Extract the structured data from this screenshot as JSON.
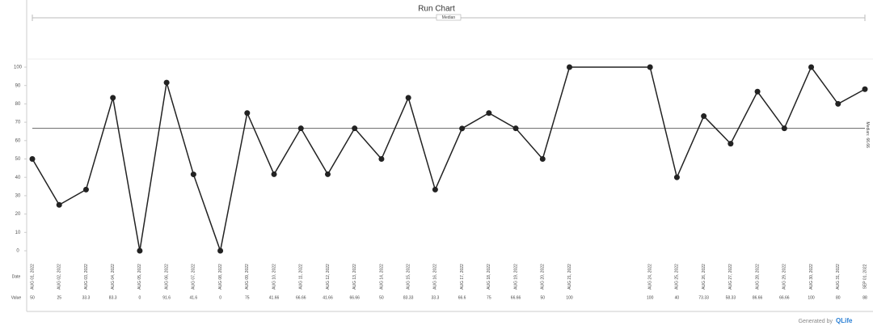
{
  "chart_data": {
    "type": "line",
    "title": "Run Chart",
    "legend_label": "Median",
    "x": [
      1,
      2,
      3,
      4,
      5,
      6,
      7,
      8,
      9,
      10,
      11,
      12,
      13,
      14,
      15,
      16,
      17,
      18,
      19,
      20,
      21,
      24,
      25,
      26,
      27,
      28,
      29,
      30,
      31,
      32
    ],
    "xlim": [
      1,
      32
    ],
    "categories": [
      "AUG 01, 2022",
      "AUG 02, 2022",
      "AUG 03, 2022",
      "AUG 04, 2022",
      "AUG 05, 2022",
      "AUG 06, 2022",
      "AUG 07, 2022",
      "AUG 08, 2022",
      "AUG 09, 2022",
      "AUG 10, 2022",
      "AUG 11, 2022",
      "AUG 12, 2022",
      "AUG 13, 2022",
      "AUG 14, 2022",
      "AUG 15, 2022",
      "AUG 16, 2022",
      "AUG 17, 2022",
      "AUG 18, 2022",
      "AUG 19, 2022",
      "AUG 20, 2022",
      "AUG 21, 2022",
      "AUG 24, 2022",
      "AUG 25, 2022",
      "AUG 26, 2022",
      "AUG 27, 2022",
      "AUG 28, 2022",
      "AUG 29, 2022",
      "AUG 30, 2022",
      "AUG 31, 2022",
      "SEP 01, 2022"
    ],
    "values": [
      50,
      25,
      33.3,
      83.3,
      0,
      91.6,
      41.6,
      0,
      75,
      41.66,
      66.66,
      41.66,
      66.66,
      50,
      83.33,
      33.3,
      66.6,
      75,
      66.66,
      50,
      100,
      100,
      40,
      73.33,
      58.33,
      86.66,
      66.66,
      100,
      80,
      88
    ],
    "color": "#222222",
    "ylim": [
      0,
      100
    ],
    "yticks": [
      0,
      10,
      20,
      30,
      40,
      50,
      60,
      70,
      80,
      90,
      100
    ],
    "median": 66.66,
    "median_label": "Median:",
    "row_labels": [
      "Date",
      "Value"
    ],
    "footer": "Generated by",
    "brand": "QLife"
  }
}
